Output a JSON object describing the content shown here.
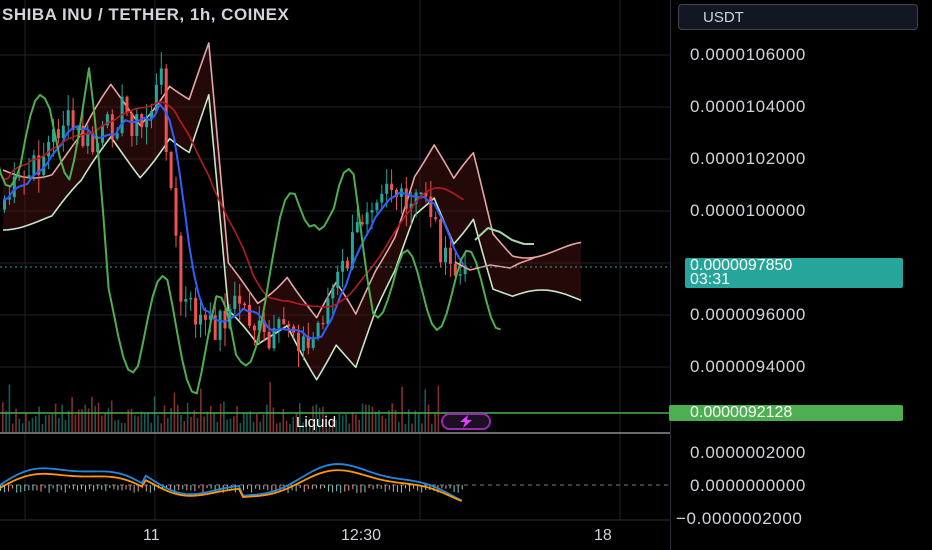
{
  "header": {
    "title": "SHIBA INU / TETHER, 1h, COINEX"
  },
  "price_axis": {
    "currency_label": "USDT",
    "labels": [
      "0.0000106000",
      "0.0000104000",
      "0.0000102000",
      "0.0000100000",
      "0.0000096000",
      "0.0000094000"
    ],
    "last_price": "0.0000097850",
    "countdown": "03:31",
    "line_price": "0.0000092128"
  },
  "oscillator_axis": {
    "labels": [
      "0.0000002000",
      "0.0000000000",
      "−0.0000002000"
    ]
  },
  "time_axis": {
    "labels": [
      "11",
      "12:30",
      "18"
    ]
  },
  "watermark": {
    "text": "Liquid",
    "icon": "lightning-icon"
  },
  "colors": {
    "up": "#26a69a",
    "down": "#ef5350",
    "line": "#4caf50",
    "cloud_green": "#c8e6c9",
    "ma_blue": "#2962ff",
    "red_line": "#b71c1c"
  },
  "chart_data": {
    "type": "candlestick",
    "symbol": "SHIBA INU / TETHER",
    "interval": "1h",
    "exchange": "COINEX",
    "y_unit": "USDT",
    "ylim": [
      9.1e-06,
      1.07e-05
    ],
    "last_price": 9.785e-06,
    "horizontal_line": 9.2128e-06,
    "oscillator_ylim": [
      -2.5e-07,
      2.5e-07
    ]
  }
}
